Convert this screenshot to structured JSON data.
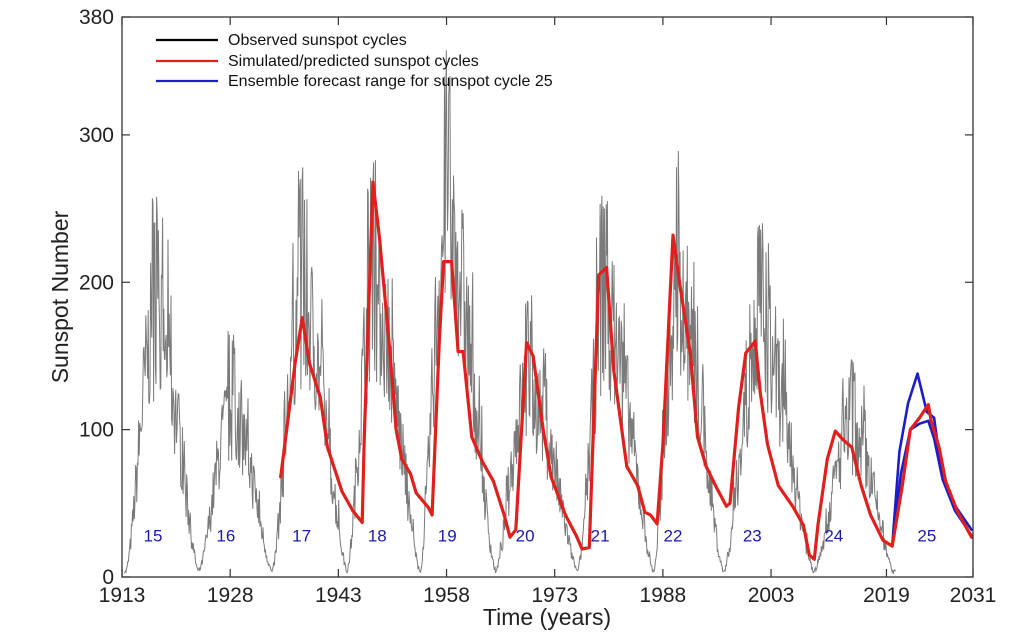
{
  "chart_data": {
    "type": "line",
    "xlabel": "Time (years)",
    "ylabel": "Sunspot Number",
    "xlim": [
      1913,
      2031
    ],
    "ylim": [
      0,
      380
    ],
    "x_ticks": [
      1913,
      1928,
      1943,
      1958,
      1973,
      1988,
      2003,
      2019,
      2031
    ],
    "y_ticks": [
      0,
      100,
      200,
      300,
      380
    ],
    "grid": false,
    "legend_position": "top-left",
    "legend": [
      {
        "label": "Observed sunspot cycles",
        "color": "#000000"
      },
      {
        "label": "Simulated/predicted sunspot cycles",
        "color": "#e0201c"
      },
      {
        "label": "Ensemble forecast range for sunspot cycle 25",
        "color": "#1c1cc8"
      }
    ],
    "cycle_labels": [
      {
        "text": "15",
        "x": 1917.3
      },
      {
        "text": "16",
        "x": 1927.4
      },
      {
        "text": "17",
        "x": 1937.9
      },
      {
        "text": "18",
        "x": 1948.4
      },
      {
        "text": "19",
        "x": 1958.1
      },
      {
        "text": "20",
        "x": 1968.9
      },
      {
        "text": "21",
        "x": 1979.3
      },
      {
        "text": "22",
        "x": 1989.4
      },
      {
        "text": "23",
        "x": 2000.4
      },
      {
        "text": "24",
        "x": 2011.7
      },
      {
        "text": "25",
        "x": 2024.6
      }
    ],
    "cycle_label_y": 28,
    "observed_cycles": [
      {
        "start": 1913.5,
        "peak": 1917.6,
        "end": 1923.6,
        "max": 260
      },
      {
        "start": 1923.6,
        "peak": 1928.2,
        "end": 1933.8,
        "max": 165
      },
      {
        "start": 1933.8,
        "peak": 1937.9,
        "end": 1944.2,
        "max": 278
      },
      {
        "start": 1944.2,
        "peak": 1947.8,
        "end": 1954.3,
        "max": 285
      },
      {
        "start": 1954.3,
        "peak": 1958.0,
        "end": 1964.8,
        "max": 360
      },
      {
        "start": 1964.8,
        "peak": 1969.2,
        "end": 1976.2,
        "max": 190
      },
      {
        "start": 1976.2,
        "peak": 1979.9,
        "end": 1986.7,
        "max": 268
      },
      {
        "start": 1986.7,
        "peak": 1990.0,
        "end": 1996.4,
        "max": 283
      },
      {
        "start": 1996.4,
        "peak": 2001.5,
        "end": 2008.9,
        "max": 245
      },
      {
        "start": 2008.9,
        "peak": 2014.2,
        "end": 2019.9,
        "max": 146
      }
    ],
    "series": [
      {
        "name": "Simulated/predicted sunspot cycles",
        "color": "#e0201c",
        "points": [
          [
            1935.0,
            68
          ],
          [
            1937.0,
            145
          ],
          [
            1938.0,
            176
          ],
          [
            1939.0,
            145
          ],
          [
            1940.5,
            122
          ],
          [
            1941.5,
            88
          ],
          [
            1943.5,
            58
          ],
          [
            1945.0,
            45
          ],
          [
            1946.3,
            37
          ],
          [
            1946.6,
            95
          ],
          [
            1947.8,
            268
          ],
          [
            1948.7,
            230
          ],
          [
            1950.2,
            150
          ],
          [
            1951.0,
            100
          ],
          [
            1951.8,
            80
          ],
          [
            1953.0,
            70
          ],
          [
            1953.8,
            57
          ],
          [
            1955.5,
            47
          ],
          [
            1956.0,
            42
          ],
          [
            1957.0,
            160
          ],
          [
            1957.6,
            214
          ],
          [
            1958.7,
            214
          ],
          [
            1959.6,
            153
          ],
          [
            1960.3,
            153
          ],
          [
            1961.5,
            95
          ],
          [
            1963.0,
            78
          ],
          [
            1964.5,
            65
          ],
          [
            1966.0,
            42
          ],
          [
            1966.8,
            27
          ],
          [
            1967.6,
            32
          ],
          [
            1969.1,
            159
          ],
          [
            1970.0,
            150
          ],
          [
            1971.4,
            100
          ],
          [
            1972.5,
            68
          ],
          [
            1974.5,
            42
          ],
          [
            1976.0,
            28
          ],
          [
            1976.8,
            19
          ],
          [
            1977.8,
            20
          ],
          [
            1979.1,
            205
          ],
          [
            1980.2,
            210
          ],
          [
            1981.2,
            140
          ],
          [
            1983.0,
            75
          ],
          [
            1984.5,
            62
          ],
          [
            1985.5,
            44
          ],
          [
            1986.3,
            42
          ],
          [
            1987.2,
            36
          ],
          [
            1988.0,
            90
          ],
          [
            1989.4,
            232
          ],
          [
            1990.3,
            200
          ],
          [
            1991.8,
            152
          ],
          [
            1992.8,
            95
          ],
          [
            1994.0,
            75
          ],
          [
            1995.3,
            62
          ],
          [
            1996.8,
            48
          ],
          [
            1997.3,
            50
          ],
          [
            1998.5,
            115
          ],
          [
            1999.5,
            152
          ],
          [
            2000.8,
            160
          ],
          [
            2001.5,
            125
          ],
          [
            2002.5,
            90
          ],
          [
            2004.0,
            62
          ],
          [
            2006.0,
            48
          ],
          [
            2007.5,
            35
          ],
          [
            2008.3,
            15
          ],
          [
            2009.0,
            12
          ],
          [
            2009.5,
            35
          ],
          [
            2010.8,
            80
          ],
          [
            2011.9,
            99
          ],
          [
            2013.0,
            93
          ],
          [
            2014.2,
            88
          ],
          [
            2015.5,
            62
          ],
          [
            2016.8,
            42
          ],
          [
            2018.5,
            25
          ],
          [
            2019.8,
            21
          ],
          [
            2021.2,
            62
          ],
          [
            2022.3,
            100
          ],
          [
            2023.6,
            108
          ],
          [
            2024.8,
            117
          ],
          [
            2025.2,
            106
          ],
          [
            2026.3,
            88
          ],
          [
            2027.2,
            65
          ],
          [
            2028.8,
            45
          ],
          [
            2030.8,
            27
          ]
        ]
      },
      {
        "name": "Ensemble forecast range for sunspot cycle 25",
        "color": "#1c1cc8",
        "points": [
          [
            2019.8,
            21
          ],
          [
            2020.8,
            85
          ],
          [
            2022.0,
            118
          ],
          [
            2023.3,
            138
          ],
          [
            2024.6,
            112
          ],
          [
            2025.6,
            108
          ],
          [
            2026.6,
            72
          ],
          [
            2028.0,
            52
          ],
          [
            2030.8,
            32
          ]
        ]
      },
      {
        "name": "Ensemble forecast range for sunspot cycle 25",
        "color": "#1c1cc8",
        "points": [
          [
            2019.8,
            21
          ],
          [
            2021.0,
            70
          ],
          [
            2022.3,
            100
          ],
          [
            2023.6,
            104
          ],
          [
            2024.8,
            106
          ],
          [
            2025.6,
            94
          ],
          [
            2026.8,
            66
          ],
          [
            2028.5,
            45
          ],
          [
            2030.8,
            28
          ]
        ]
      }
    ]
  }
}
